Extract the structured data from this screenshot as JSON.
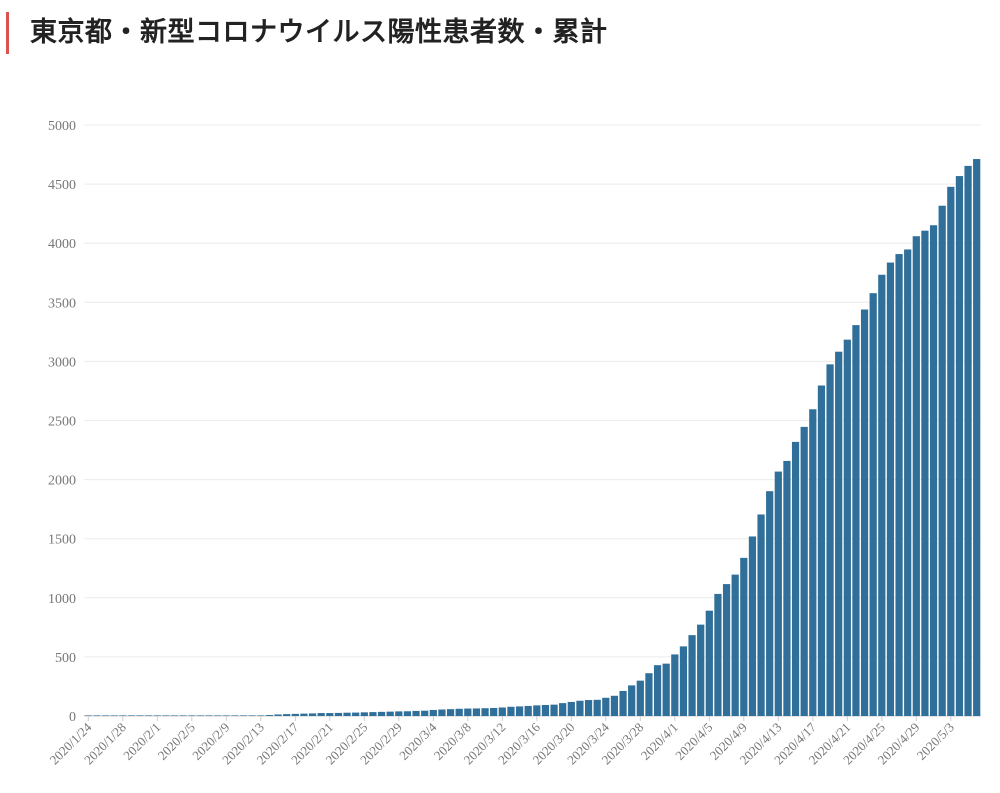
{
  "header": {
    "title": "東京都・新型コロナウイルス陽性患者数・累計",
    "accent_color": "#d9534f"
  },
  "chart_data": {
    "type": "bar",
    "title": "東京都・新型コロナウイルス陽性患者数・累計",
    "xlabel": "",
    "ylabel": "",
    "ylim": [
      0,
      5000
    ],
    "yticks": [
      "0",
      "500",
      "1000",
      "1500",
      "2000",
      "2500",
      "3000",
      "3500",
      "4000",
      "4500",
      "5000"
    ],
    "grid": true,
    "bar_color": "#2f6f99",
    "start_date": "2020-01-24",
    "tick_every": 4,
    "categories": [
      "2020/1/24",
      "2020/1/25",
      "2020/1/26",
      "2020/1/27",
      "2020/1/28",
      "2020/1/29",
      "2020/1/30",
      "2020/1/31",
      "2020/2/1",
      "2020/2/2",
      "2020/2/3",
      "2020/2/4",
      "2020/2/5",
      "2020/2/6",
      "2020/2/7",
      "2020/2/8",
      "2020/2/9",
      "2020/2/10",
      "2020/2/11",
      "2020/2/12",
      "2020/2/13",
      "2020/2/14",
      "2020/2/15",
      "2020/2/16",
      "2020/2/17",
      "2020/2/18",
      "2020/2/19",
      "2020/2/20",
      "2020/2/21",
      "2020/2/22",
      "2020/2/23",
      "2020/2/24",
      "2020/2/25",
      "2020/2/26",
      "2020/2/27",
      "2020/2/28",
      "2020/2/29",
      "2020/3/1",
      "2020/3/2",
      "2020/3/3",
      "2020/3/4",
      "2020/3/5",
      "2020/3/6",
      "2020/3/7",
      "2020/3/8",
      "2020/3/9",
      "2020/3/10",
      "2020/3/11",
      "2020/3/12",
      "2020/3/13",
      "2020/3/14",
      "2020/3/15",
      "2020/3/16",
      "2020/3/17",
      "2020/3/18",
      "2020/3/19",
      "2020/3/20",
      "2020/3/21",
      "2020/3/22",
      "2020/3/23",
      "2020/3/24",
      "2020/3/25",
      "2020/3/26",
      "2020/3/27",
      "2020/3/28",
      "2020/3/29",
      "2020/3/30",
      "2020/3/31",
      "2020/4/1",
      "2020/4/2",
      "2020/4/3",
      "2020/4/4",
      "2020/4/5",
      "2020/4/6",
      "2020/4/7",
      "2020/4/8",
      "2020/4/9",
      "2020/4/10",
      "2020/4/11",
      "2020/4/12",
      "2020/4/13",
      "2020/4/14",
      "2020/4/15",
      "2020/4/16",
      "2020/4/17",
      "2020/4/18",
      "2020/4/19",
      "2020/4/20",
      "2020/4/21",
      "2020/4/22",
      "2020/4/23",
      "2020/4/24",
      "2020/4/25",
      "2020/4/26",
      "2020/4/27",
      "2020/4/28",
      "2020/4/29",
      "2020/4/30",
      "2020/5/1",
      "2020/5/2",
      "2020/5/3",
      "2020/5/4",
      "2020/5/5",
      "2020/5/6"
    ],
    "values": [
      1,
      1,
      1,
      1,
      1,
      1,
      2,
      2,
      2,
      2,
      2,
      2,
      2,
      2,
      3,
      3,
      3,
      3,
      3,
      3,
      4,
      8,
      13,
      16,
      18,
      20,
      22,
      25,
      25,
      26,
      28,
      29,
      31,
      33,
      35,
      37,
      39,
      40,
      43,
      45,
      51,
      55,
      58,
      61,
      63,
      64,
      66,
      68,
      72,
      78,
      81,
      85,
      90,
      93,
      96,
      109,
      119,
      129,
      135,
      137,
      154,
      171,
      212,
      259,
      299,
      362,
      430,
      443,
      521,
      589,
      684,
      773,
      891,
      1033,
      1116,
      1196,
      1338,
      1519,
      1705,
      1902,
      2068,
      2158,
      2319,
      2446,
      2595,
      2796,
      2975,
      3082,
      3184,
      3307,
      3439,
      3577,
      3733,
      3836,
      3908,
      3947,
      4059,
      4106,
      4152,
      4317,
      4477,
      4568,
      4654,
      4712
    ]
  }
}
